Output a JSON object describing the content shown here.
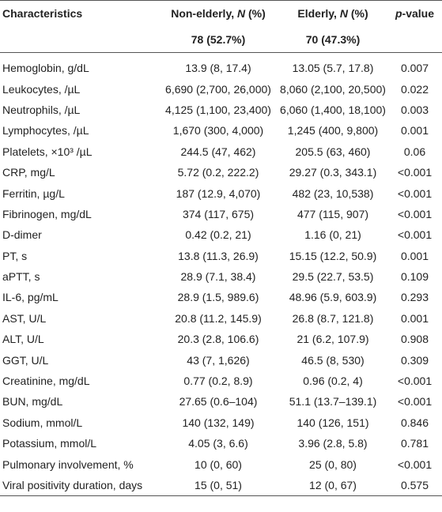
{
  "header": {
    "characteristics": "Characteristics",
    "groups": [
      {
        "label": [
          "Non-elderly, ",
          "N",
          " (%)"
        ],
        "count": "78 (52.7%)"
      },
      {
        "label": [
          "Elderly, ",
          "N",
          " (%)"
        ],
        "count": "70 (47.3%)"
      }
    ],
    "pvalue": [
      "p",
      "-value"
    ]
  },
  "table": {
    "rows": [
      [
        "Hemoglobin, g/dL",
        "13.9 (8, 17.4)",
        "13.05 (5.7, 17.8)",
        "0.007"
      ],
      [
        "Leukocytes, /µL",
        "6,690 (2,700, 26,000)",
        "8,060 (2,100, 20,500)",
        "0.022"
      ],
      [
        "Neutrophils, /µL",
        "4,125 (1,100, 23,400)",
        "6,060 (1,400, 18,100)",
        "0.003"
      ],
      [
        "Lymphocytes, /µL",
        "1,670 (300, 4,000)",
        "1,245 (400, 9,800)",
        "0.001"
      ],
      [
        "Platelets, ×10³ /µL",
        "244.5 (47, 462)",
        "205.5 (63, 460)",
        "0.06"
      ],
      [
        "CRP, mg/L",
        "5.72 (0.2, 222.2)",
        "29.27 (0.3, 343.1)",
        "<0.001"
      ],
      [
        "Ferritin, µg/L",
        "187 (12.9, 4,070)",
        "482 (23, 10,538)",
        "<0.001"
      ],
      [
        "Fibrinogen, mg/dL",
        "374 (117, 675)",
        "477 (115, 907)",
        "<0.001"
      ],
      [
        "D-dimer",
        "0.42 (0.2, 21)",
        "1.16 (0, 21)",
        "<0.001"
      ],
      [
        "PT, s",
        "13.8 (11.3, 26.9)",
        "15.15 (12.2, 50.9)",
        "0.001"
      ],
      [
        "aPTT, s",
        "28.9 (7.1, 38.4)",
        "29.5 (22.7, 53.5)",
        "0.109"
      ],
      [
        "IL-6, pg/mL",
        "28.9 (1.5, 989.6)",
        "48.96 (5.9, 603.9)",
        "0.293"
      ],
      [
        "AST, U/L",
        "20.8 (11.2, 145.9)",
        "26.8 (8.7, 121.8)",
        "0.001"
      ],
      [
        "ALT, U/L",
        "20.3 (2.8, 106.6)",
        "21 (6.2, 107.9)",
        "0.908"
      ],
      [
        "GGT, U/L",
        "43 (7, 1,626)",
        "46.5 (8, 530)",
        "0.309"
      ],
      [
        "Creatinine, mg/dL",
        "0.77 (0.2, 8.9)",
        "0.96 (0.2, 4)",
        "<0.001"
      ],
      [
        "BUN, mg/dL",
        "27.65 (0.6–104)",
        "51.1 (13.7–139.1)",
        "<0.001"
      ],
      [
        "Sodium, mmol/L",
        "140 (132, 149)",
        "140 (126, 151)",
        "0.846"
      ],
      [
        "Potassium, mmol/L",
        "4.05 (3, 6.6)",
        "3.96 (2.8, 5.8)",
        "0.781"
      ],
      [
        "Pulmonary involvement, %",
        "10 (0, 60)",
        "25 (0, 80)",
        "<0.001"
      ],
      [
        "Viral positivity duration, days",
        "15 (0, 51)",
        "12 (0, 67)",
        "0.575"
      ]
    ]
  }
}
